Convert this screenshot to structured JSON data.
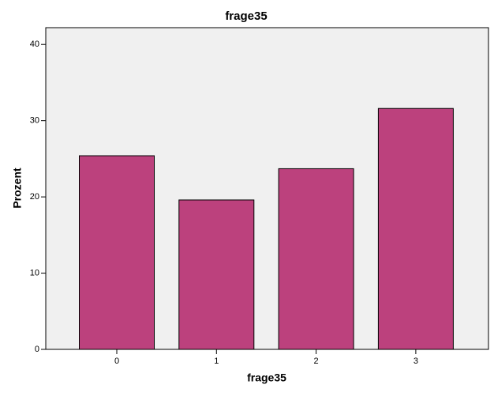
{
  "chart_data": {
    "type": "bar",
    "title": "frage35",
    "x_label": "frage35",
    "y_label": "Prozent",
    "categories": [
      "0",
      "1",
      "2",
      "3"
    ],
    "values": [
      25.4,
      19.6,
      23.7,
      31.6
    ],
    "color": "#bc417d",
    "ylim": [
      0,
      42.2
    ],
    "yticks": [
      0,
      10,
      20,
      30,
      40
    ]
  }
}
